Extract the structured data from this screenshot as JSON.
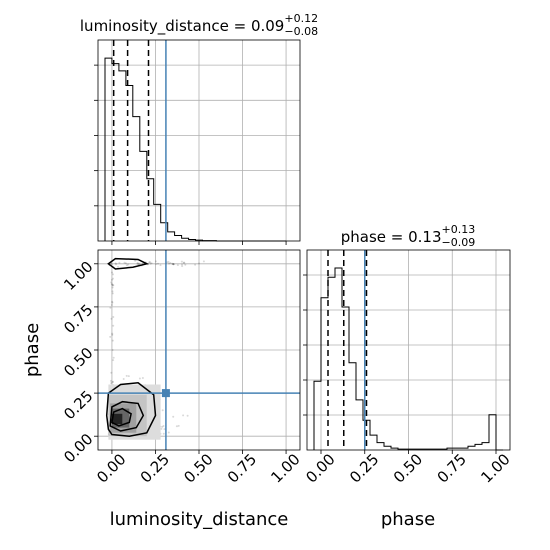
{
  "chart_data": [
    {
      "type": "histogram",
      "panel": "marginal-luminosity-distance",
      "title": {
        "param": "luminosity_distance",
        "median": "0.09",
        "plus": "+0.12",
        "minus": "−0.08"
      },
      "x_range": [
        -0.08,
        1.08
      ],
      "bin_edges": [
        -0.04,
        0.0,
        0.04,
        0.08,
        0.12,
        0.16,
        0.2,
        0.24,
        0.28,
        0.32,
        0.36,
        0.4,
        0.44,
        0.48,
        0.52,
        0.56,
        0.6,
        0.64,
        0.68,
        0.72,
        0.76,
        0.8,
        0.84,
        0.88,
        0.92,
        0.96,
        1.0
      ],
      "counts": [
        1.0,
        0.97,
        0.93,
        0.85,
        0.68,
        0.49,
        0.34,
        0.2,
        0.1,
        0.05,
        0.03,
        0.015,
        0.008,
        0.005,
        0.002,
        0.002,
        0,
        0,
        0,
        0,
        0,
        0,
        0,
        0,
        0,
        0
      ],
      "quantiles": [
        0.01,
        0.09,
        0.21
      ],
      "truth": 0.31,
      "grid": true
    },
    {
      "type": "histogram",
      "panel": "marginal-phase",
      "title": {
        "param": "phase",
        "median": "0.13",
        "plus": "+0.13",
        "minus": "−0.09"
      },
      "x_range": [
        -0.08,
        1.08
      ],
      "x_ticks": [
        "0.00",
        "0.25",
        "0.50",
        "0.75",
        "1.00"
      ],
      "xlabel": "phase",
      "bin_edges": [
        -0.04,
        0.0,
        0.04,
        0.08,
        0.12,
        0.16,
        0.2,
        0.24,
        0.28,
        0.32,
        0.36,
        0.4,
        0.44,
        0.48,
        0.52,
        0.56,
        0.6,
        0.64,
        0.68,
        0.72,
        0.76,
        0.8,
        0.84,
        0.88,
        0.92,
        0.96,
        1.0,
        1.04
      ],
      "counts": [
        0.37,
        0.82,
        0.93,
        0.98,
        0.77,
        0.47,
        0.27,
        0.16,
        0.08,
        0.04,
        0.02,
        0.01,
        0.005,
        0.005,
        0.005,
        0.005,
        0.005,
        0.005,
        0.005,
        0.01,
        0.01,
        0.01,
        0.02,
        0.03,
        0.04,
        0.19,
        0.0
      ],
      "quantiles": [
        0.04,
        0.13,
        0.26
      ],
      "truth": 0.25,
      "grid": true
    },
    {
      "type": "scatter",
      "panel": "joint-luminosity-distance-phase",
      "x_range": [
        -0.08,
        1.08
      ],
      "y_range": [
        -0.08,
        1.08
      ],
      "x_ticks": [
        "0.00",
        "0.25",
        "0.50",
        "0.75",
        "1.00"
      ],
      "y_ticks": [
        "0.00",
        "0.25",
        "0.50",
        "0.75",
        "1.00"
      ],
      "xlabel": "luminosity_distance",
      "ylabel": "phase",
      "truth": {
        "x": 0.31,
        "y": 0.25
      },
      "density_squares": [
        {
          "x": [
            -0.02,
            0.28
          ],
          "y": [
            -0.02,
            0.3
          ],
          "shade": "#dddddd"
        },
        {
          "x": [
            -0.02,
            0.2
          ],
          "y": [
            0.0,
            0.24
          ],
          "shade": "#c4c4c4"
        },
        {
          "x": [
            -0.01,
            0.14
          ],
          "y": [
            0.02,
            0.19
          ],
          "shade": "#a0a0a0"
        },
        {
          "x": [
            0.0,
            0.1
          ],
          "y": [
            0.05,
            0.16
          ],
          "shade": "#666666"
        },
        {
          "x": [
            0.0,
            0.06
          ],
          "y": [
            0.07,
            0.13
          ],
          "shade": "#222222"
        }
      ],
      "contours": [
        [
          [
            -0.02,
            0.04
          ],
          [
            0.0,
            0.01
          ],
          [
            0.1,
            0.0
          ],
          [
            0.2,
            0.02
          ],
          [
            0.25,
            0.12
          ],
          [
            0.24,
            0.24
          ],
          [
            0.15,
            0.31
          ],
          [
            0.05,
            0.3
          ],
          [
            -0.02,
            0.25
          ],
          [
            -0.03,
            0.12
          ],
          [
            -0.02,
            0.04
          ]
        ],
        [
          [
            -0.01,
            0.06
          ],
          [
            0.05,
            0.03
          ],
          [
            0.14,
            0.05
          ],
          [
            0.18,
            0.12
          ],
          [
            0.15,
            0.19
          ],
          [
            0.06,
            0.2
          ],
          [
            0.0,
            0.17
          ],
          [
            -0.01,
            0.06
          ]
        ],
        [
          [
            0.0,
            0.08
          ],
          [
            0.04,
            0.06
          ],
          [
            0.1,
            0.08
          ],
          [
            0.11,
            0.13
          ],
          [
            0.06,
            0.16
          ],
          [
            0.01,
            0.14
          ],
          [
            0.0,
            0.08
          ]
        ],
        [
          [
            -0.02,
            1.0
          ],
          [
            0.02,
            0.97
          ],
          [
            0.12,
            0.98
          ],
          [
            0.2,
            1.0
          ],
          [
            0.15,
            1.025
          ],
          [
            0.02,
            1.03
          ],
          [
            -0.02,
            1.0
          ]
        ]
      ],
      "grid": true
    }
  ]
}
